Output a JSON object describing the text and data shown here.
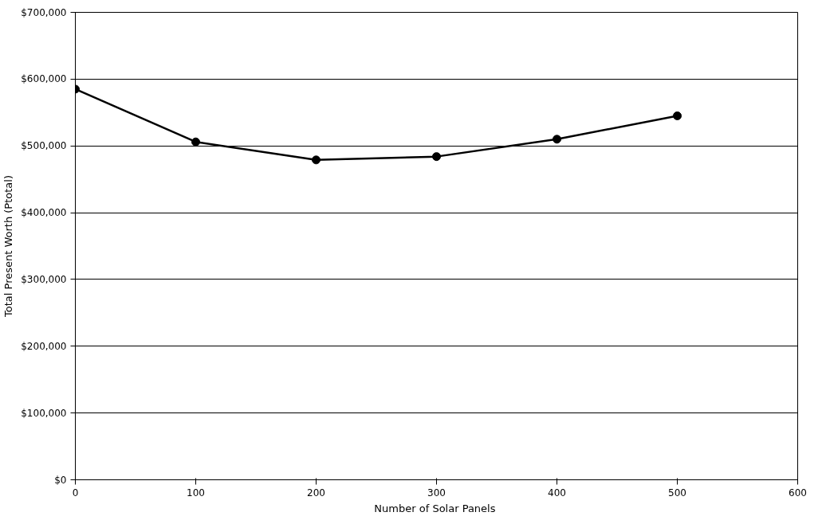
{
  "chart_data": {
    "type": "line",
    "xlabel": "Number  of Solar Panels",
    "ylabel": "Total Present Worth (Ptotal)",
    "x": [
      0,
      100,
      200,
      300,
      400,
      500
    ],
    "series": [
      {
        "color": "#000000",
        "values": [
          585000,
          506000,
          479000,
          484000,
          510000,
          545000
        ]
      }
    ],
    "xlim": [
      0,
      600
    ],
    "xticks": [
      0,
      100,
      200,
      300,
      400,
      500,
      600
    ],
    "ylim": [
      0,
      700000
    ],
    "yticks": [
      {
        "value": 0,
        "label": "$0"
      },
      {
        "value": 100000,
        "label": "$100,000"
      },
      {
        "value": 200000,
        "label": "$200,000"
      },
      {
        "value": 300000,
        "label": "$300,000"
      },
      {
        "value": 400000,
        "label": "$400,000"
      },
      {
        "value": 500000,
        "label": "$500,000"
      },
      {
        "value": 600000,
        "label": "$600,000"
      },
      {
        "value": 700000,
        "label": "$700,000"
      }
    ],
    "grid": "y",
    "marker": "circle",
    "line_style": "solid"
  }
}
